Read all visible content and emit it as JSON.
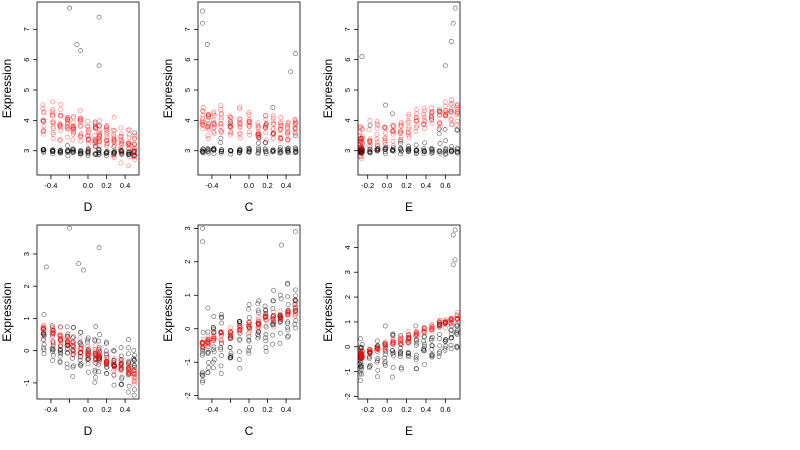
{
  "figure": {
    "background": "#ffffff",
    "point_colors": {
      "red_series": "#ff0000",
      "black_series": "#000000"
    }
  },
  "chart_data": [
    {
      "type": "scatter",
      "xlabel": "D",
      "ylabel": "Expression",
      "xlim": [
        -0.55,
        0.55
      ],
      "ylim": [
        2.2,
        7.9
      ],
      "x_ticks": [
        -0.4,
        -0.2,
        0.0,
        0.2,
        0.4
      ],
      "x_tick_labels": [
        "-0.4",
        "",
        "0.0",
        "0.2",
        "0.4"
      ],
      "y_ticks": [
        3,
        4,
        5,
        6,
        7
      ],
      "y_tick_labels": [
        "3",
        "4",
        "5",
        "6",
        "7"
      ],
      "x_columns": [
        -0.48,
        -0.38,
        -0.3,
        -0.22,
        -0.16,
        -0.08,
        0.0,
        0.08,
        0.12,
        0.2,
        0.28,
        0.36,
        0.44,
        0.5
      ],
      "series": [
        {
          "color": "#ff0000",
          "y_start": 4.2,
          "y_end": 3.1,
          "spread": 0.55,
          "points": 14
        },
        {
          "color": "#000000",
          "y_start": 3.0,
          "y_end": 2.9,
          "spread": 0.1,
          "points": 8,
          "outlier_spread": 1.5
        }
      ],
      "outliers": [
        [
          -0.2,
          7.7
        ],
        [
          0.12,
          7.4
        ],
        [
          -0.12,
          6.5
        ],
        [
          -0.08,
          6.3
        ],
        [
          0.12,
          5.8
        ]
      ]
    },
    {
      "type": "scatter",
      "xlabel": "C",
      "ylabel": "Expression",
      "xlim": [
        -0.55,
        0.55
      ],
      "ylim": [
        2.2,
        7.9
      ],
      "x_ticks": [
        -0.4,
        -0.2,
        0.0,
        0.2,
        0.4
      ],
      "x_tick_labels": [
        "-0.4",
        "",
        "0.0",
        "0.2",
        "0.4"
      ],
      "y_ticks": [
        3,
        4,
        5,
        6,
        7
      ],
      "y_tick_labels": [
        "3",
        "4",
        "5",
        "6",
        "7"
      ],
      "x_columns": [
        -0.5,
        -0.44,
        -0.38,
        -0.3,
        -0.2,
        -0.1,
        0.0,
        0.1,
        0.18,
        0.26,
        0.34,
        0.42,
        0.5
      ],
      "series": [
        {
          "color": "#ff0000",
          "y_start": 3.9,
          "y_end": 3.7,
          "spread": 0.5,
          "points": 12
        },
        {
          "color": "#000000",
          "y_start": 3.0,
          "y_end": 3.0,
          "spread": 0.1,
          "points": 8,
          "outlier_spread": 1.6
        }
      ],
      "outliers": [
        [
          -0.5,
          7.6
        ],
        [
          -0.5,
          7.2
        ],
        [
          -0.45,
          6.5
        ],
        [
          0.5,
          6.2
        ],
        [
          0.45,
          5.6
        ]
      ]
    },
    {
      "type": "scatter",
      "xlabel": "E",
      "ylabel": "Expression",
      "xlim": [
        -0.3,
        0.75
      ],
      "ylim": [
        2.2,
        7.9
      ],
      "x_ticks": [
        -0.2,
        0.0,
        0.2,
        0.4,
        0.6
      ],
      "x_tick_labels": [
        "-0.2",
        "0.0",
        "0.2",
        "0.4",
        "0.6"
      ],
      "y_ticks": [
        3,
        4,
        5,
        6,
        7
      ],
      "y_tick_labels": [
        "3",
        "4",
        "5",
        "6",
        "7"
      ],
      "x_columns": [
        -0.28,
        -0.27,
        -0.26,
        -0.18,
        -0.1,
        -0.02,
        0.06,
        0.14,
        0.22,
        0.3,
        0.38,
        0.46,
        0.54,
        0.6,
        0.66,
        0.72
      ],
      "series": [
        {
          "color": "#ff0000",
          "y_start": 3.3,
          "y_end": 4.4,
          "spread": 0.5,
          "points": 10
        },
        {
          "color": "#000000",
          "y_start": 3.0,
          "y_end": 3.0,
          "spread": 0.1,
          "points": 8,
          "outlier_spread": 1.5
        }
      ],
      "outliers": [
        [
          0.7,
          7.7
        ],
        [
          0.68,
          7.2
        ],
        [
          0.66,
          6.6
        ],
        [
          -0.26,
          6.1
        ],
        [
          0.6,
          5.8
        ]
      ]
    },
    {
      "type": "scatter",
      "xlabel": "D",
      "ylabel": "Expression",
      "xlim": [
        -0.55,
        0.55
      ],
      "ylim": [
        -1.5,
        3.9
      ],
      "x_ticks": [
        -0.4,
        -0.2,
        0.0,
        0.2,
        0.4
      ],
      "x_tick_labels": [
        "-0.4",
        "",
        "0.0",
        "0.2",
        "0.4"
      ],
      "y_ticks": [
        -1,
        0,
        1,
        2,
        3
      ],
      "y_tick_labels": [
        "-1",
        "0",
        "1",
        "2",
        "3"
      ],
      "x_columns": [
        -0.48,
        -0.38,
        -0.3,
        -0.22,
        -0.16,
        -0.08,
        0.0,
        0.08,
        0.12,
        0.2,
        0.28,
        0.36,
        0.44,
        0.5
      ],
      "series": [
        {
          "color": "#ff0000",
          "y_start": 0.7,
          "y_end": -0.8,
          "spread": 0.25,
          "points": 12
        },
        {
          "color": "#000000",
          "y_start": 0.4,
          "y_end": -0.6,
          "spread": 0.8,
          "points": 12
        }
      ],
      "outliers": [
        [
          -0.2,
          3.8
        ],
        [
          0.12,
          3.2
        ],
        [
          -0.1,
          2.7
        ],
        [
          -0.45,
          2.6
        ],
        [
          -0.05,
          2.5
        ]
      ]
    },
    {
      "type": "scatter",
      "xlabel": "C",
      "ylabel": "Expression",
      "xlim": [
        -0.55,
        0.55
      ],
      "ylim": [
        -2.1,
        3.1
      ],
      "x_ticks": [
        -0.4,
        -0.2,
        0.0,
        0.2,
        0.4
      ],
      "x_tick_labels": [
        "-0.4",
        "",
        "0.0",
        "0.2",
        "0.4"
      ],
      "y_ticks": [
        -2,
        -1,
        0,
        1,
        2,
        3
      ],
      "y_tick_labels": [
        "-2",
        "-1",
        "0",
        "1",
        "2",
        "3"
      ],
      "x_columns": [
        -0.5,
        -0.44,
        -0.38,
        -0.3,
        -0.2,
        -0.1,
        0.0,
        0.1,
        0.18,
        0.26,
        0.34,
        0.42,
        0.5
      ],
      "series": [
        {
          "color": "#ff0000",
          "y_start": -0.5,
          "y_end": 0.6,
          "spread": 0.2,
          "points": 10
        },
        {
          "color": "#000000",
          "y_start": -0.6,
          "y_end": 0.6,
          "spread": 0.9,
          "points": 12
        }
      ],
      "outliers": [
        [
          -0.5,
          3.0
        ],
        [
          0.5,
          2.9
        ],
        [
          -0.5,
          2.6
        ],
        [
          0.35,
          2.5
        ],
        [
          -0.5,
          -1.6
        ]
      ]
    },
    {
      "type": "scatter",
      "xlabel": "E",
      "ylabel": "Expression",
      "xlim": [
        -0.3,
        0.75
      ],
      "ylim": [
        -2.1,
        4.9
      ],
      "x_ticks": [
        -0.2,
        0.0,
        0.2,
        0.4,
        0.6
      ],
      "x_tick_labels": [
        "-0.2",
        "0.0",
        "0.2",
        "0.4",
        "0.6"
      ],
      "y_ticks": [
        -2,
        -1,
        0,
        1,
        2,
        3,
        4
      ],
      "y_tick_labels": [
        "-2",
        "-1",
        "0",
        "1",
        "2",
        "3",
        "4"
      ],
      "x_columns": [
        -0.28,
        -0.27,
        -0.26,
        -0.18,
        -0.1,
        -0.02,
        0.06,
        0.14,
        0.22,
        0.3,
        0.38,
        0.46,
        0.54,
        0.6,
        0.66,
        0.72
      ],
      "series": [
        {
          "color": "#ff0000",
          "y_start": -0.4,
          "y_end": 1.2,
          "spread": 0.2,
          "points": 10
        },
        {
          "color": "#000000",
          "y_start": -0.6,
          "y_end": 0.5,
          "spread": 0.8,
          "points": 10
        }
      ],
      "outliers": [
        [
          0.7,
          4.7
        ],
        [
          0.68,
          4.5
        ],
        [
          0.7,
          3.5
        ],
        [
          0.68,
          3.3
        ],
        [
          -0.28,
          -1.1
        ]
      ]
    }
  ]
}
